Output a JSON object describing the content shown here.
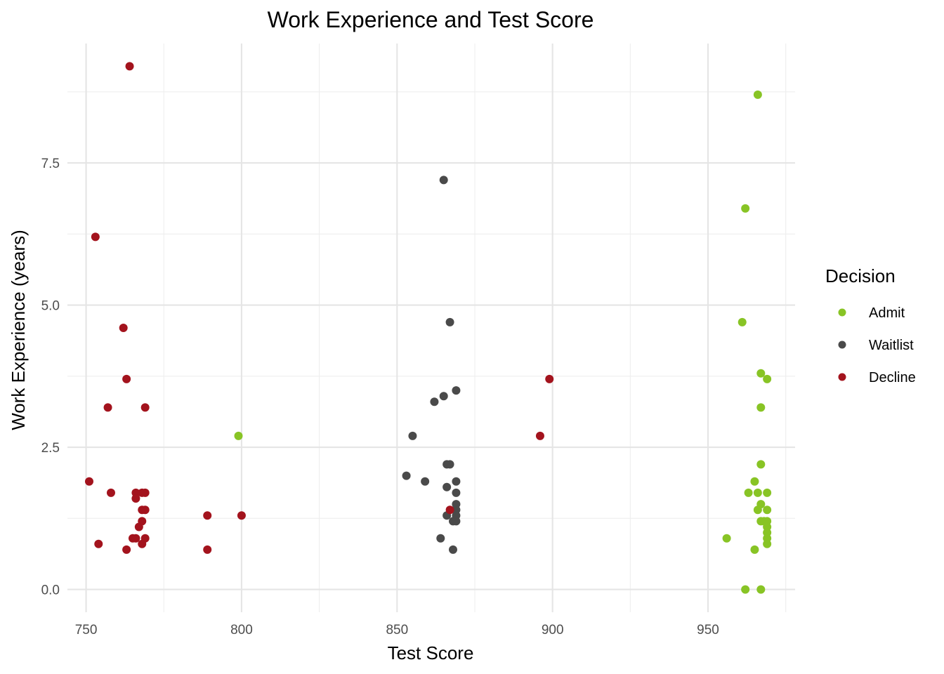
{
  "chart_data": {
    "type": "scatter",
    "title": "Work Experience and Test Score",
    "xlabel": "Test Score",
    "ylabel": "Work Experience (years)",
    "xlim": [
      744,
      978
    ],
    "ylim": [
      -0.4,
      9.6
    ],
    "x_ticks": [
      750,
      800,
      850,
      900,
      950
    ],
    "x_minor_ticks": [
      775,
      825,
      875,
      925,
      975
    ],
    "y_ticks": [
      0.0,
      2.5,
      5.0,
      7.5
    ],
    "x_tick_labels": [
      "750",
      "800",
      "850",
      "900",
      "950"
    ],
    "y_tick_labels": [
      "0.0",
      "2.5",
      "5.0",
      "7.5"
    ],
    "y_minor_ticks": [
      1.25,
      3.75,
      6.25,
      8.75
    ],
    "grid": true,
    "legend": {
      "title": "Decision",
      "position": "right"
    },
    "series": [
      {
        "name": "Admit",
        "color": "#88c425",
        "points": [
          [
            966,
            8.7
          ],
          [
            962,
            6.7
          ],
          [
            961,
            4.7
          ],
          [
            967,
            3.8
          ],
          [
            969,
            3.7
          ],
          [
            967,
            3.2
          ],
          [
            799,
            2.7
          ],
          [
            967,
            2.2
          ],
          [
            965,
            1.9
          ],
          [
            963,
            1.7
          ],
          [
            966,
            1.7
          ],
          [
            969,
            1.7
          ],
          [
            967,
            1.5
          ],
          [
            966,
            1.4
          ],
          [
            969,
            1.4
          ],
          [
            967,
            1.2
          ],
          [
            968,
            1.2
          ],
          [
            969,
            1.2
          ],
          [
            969,
            1.1
          ],
          [
            969,
            1.0
          ],
          [
            969,
            0.9
          ],
          [
            956,
            0.9
          ],
          [
            969,
            0.8
          ],
          [
            965,
            0.7
          ],
          [
            962,
            0.0
          ],
          [
            967,
            0.0
          ]
        ]
      },
      {
        "name": "Waitlist",
        "color": "#4a4a4a",
        "points": [
          [
            865,
            7.2
          ],
          [
            867,
            4.7
          ],
          [
            869,
            3.5
          ],
          [
            865,
            3.4
          ],
          [
            862,
            3.3
          ],
          [
            855,
            2.7
          ],
          [
            866,
            2.2
          ],
          [
            867,
            2.2
          ],
          [
            853,
            2.0
          ],
          [
            859,
            1.9
          ],
          [
            869,
            1.9
          ],
          [
            866,
            1.8
          ],
          [
            869,
            1.7
          ],
          [
            869,
            1.5
          ],
          [
            869,
            1.4
          ],
          [
            866,
            1.3
          ],
          [
            869,
            1.3
          ],
          [
            868,
            1.2
          ],
          [
            869,
            1.2
          ],
          [
            864,
            0.9
          ],
          [
            868,
            0.7
          ]
        ]
      },
      {
        "name": "Decline",
        "color": "#a3131d",
        "points": [
          [
            764,
            9.2
          ],
          [
            753,
            6.2
          ],
          [
            762,
            4.6
          ],
          [
            763,
            3.7
          ],
          [
            899,
            3.7
          ],
          [
            757,
            3.2
          ],
          [
            769,
            3.2
          ],
          [
            896,
            2.7
          ],
          [
            751,
            1.9
          ],
          [
            758,
            1.7
          ],
          [
            766,
            1.7
          ],
          [
            768,
            1.7
          ],
          [
            769,
            1.7
          ],
          [
            766,
            1.6
          ],
          [
            768,
            1.4
          ],
          [
            769,
            1.4
          ],
          [
            867,
            1.4
          ],
          [
            789,
            1.3
          ],
          [
            800,
            1.3
          ],
          [
            768,
            1.2
          ],
          [
            767,
            1.1
          ],
          [
            765,
            0.9
          ],
          [
            766,
            0.9
          ],
          [
            769,
            0.9
          ],
          [
            754,
            0.8
          ],
          [
            768,
            0.8
          ],
          [
            763,
            0.7
          ],
          [
            789,
            0.7
          ]
        ]
      }
    ]
  }
}
